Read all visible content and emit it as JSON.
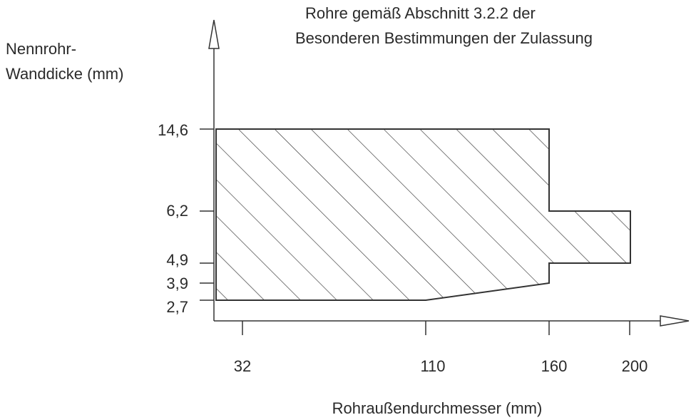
{
  "note": [
    "Rohre gemäß Abschnitt 3.2.2 der",
    "Besonderen Bestimmungen der Zulassung"
  ],
  "y_axis": {
    "label": [
      "Nennrohr-",
      "Wanddicke (mm)"
    ],
    "ticks": [
      "14,6",
      "6,2",
      "4,9",
      "3,9",
      "2,7"
    ]
  },
  "x_axis": {
    "label": "Rohraußendurchmesser (mm)",
    "ticks": [
      "32",
      "110",
      "160",
      "200"
    ]
  }
}
